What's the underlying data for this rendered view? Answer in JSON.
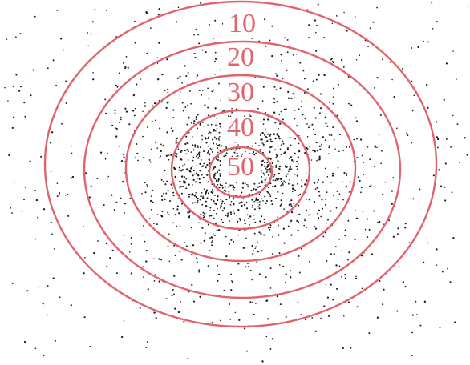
{
  "diagram": {
    "contours": [
      {
        "label": "10"
      },
      {
        "label": "20"
      },
      {
        "label": "30"
      },
      {
        "label": "40"
      },
      {
        "label": "50"
      }
    ],
    "colors": {
      "contour": "#e0646e",
      "label": "#e0646e",
      "dots": "#1a1a1a",
      "background": "#ffffff"
    }
  }
}
